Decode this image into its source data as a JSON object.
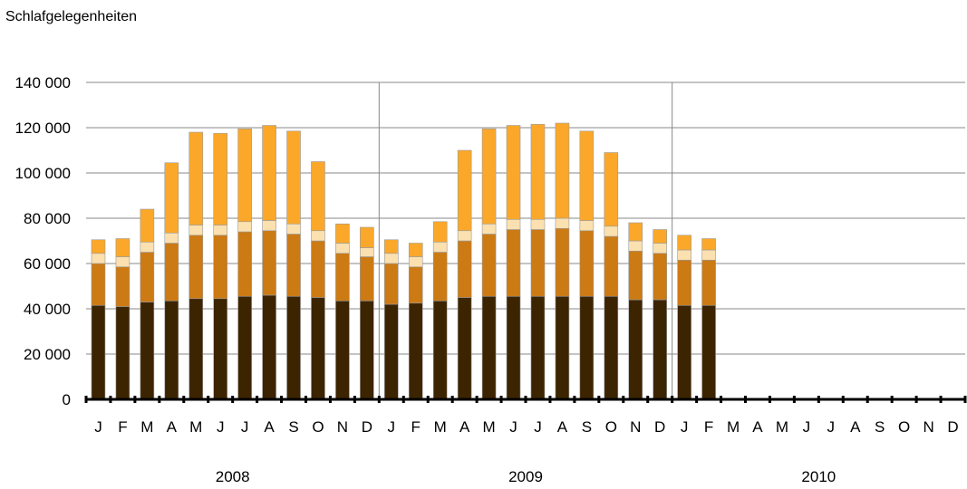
{
  "chart_data": {
    "type": "bar",
    "stacked": true,
    "ylabel": "Schlafgelegenheiten",
    "ylim": [
      0,
      140000
    ],
    "yticks": [
      0,
      20000,
      40000,
      60000,
      80000,
      100000,
      120000,
      140000
    ],
    "ytick_labels": [
      "0",
      "20 000",
      "40 000",
      "60 000",
      "80 000",
      "100 000",
      "120 000",
      "140 000"
    ],
    "grid": true,
    "legend": "none",
    "categories": [
      "J",
      "F",
      "M",
      "A",
      "M",
      "J",
      "J",
      "A",
      "S",
      "O",
      "N",
      "D",
      "J",
      "F",
      "M",
      "A",
      "M",
      "J",
      "J",
      "A",
      "S",
      "O",
      "N",
      "D",
      "J",
      "F",
      "M",
      "A",
      "M",
      "J",
      "J",
      "A",
      "S",
      "O",
      "N",
      "D"
    ],
    "years": [
      {
        "label": "2008",
        "start": 0,
        "end": 11
      },
      {
        "label": "2009",
        "start": 12,
        "end": 23
      },
      {
        "label": "2010",
        "start": 24,
        "end": 35
      }
    ],
    "colors": [
      "#3d2400",
      "#cc7a14",
      "#fbe0b0",
      "#fba82a"
    ],
    "series": [
      {
        "values": [
          41500,
          41000,
          43000,
          43500,
          44500,
          44500,
          45500,
          46000,
          45500,
          45000,
          43500,
          43500,
          42000,
          42500,
          43500,
          45000,
          45500,
          45500,
          45500,
          45500,
          45500,
          45500,
          44000,
          44000,
          41500,
          41500,
          null,
          null,
          null,
          null,
          null,
          null,
          null,
          null,
          null,
          null
        ]
      },
      {
        "values": [
          18500,
          17500,
          22000,
          25500,
          28000,
          28000,
          28500,
          28500,
          27500,
          25000,
          21000,
          19500,
          18000,
          16000,
          21500,
          25000,
          27500,
          29500,
          29500,
          30000,
          29000,
          26500,
          21500,
          20500,
          20000,
          20000,
          null,
          null,
          null,
          null,
          null,
          null,
          null,
          null,
          null,
          null
        ]
      },
      {
        "values": [
          4500,
          4500,
          4500,
          4500,
          4500,
          4500,
          4500,
          4500,
          4500,
          4500,
          4500,
          4000,
          4500,
          4500,
          4500,
          4500,
          4500,
          4500,
          4500,
          4500,
          4500,
          4500,
          4500,
          4500,
          4500,
          4500,
          null,
          null,
          null,
          null,
          null,
          null,
          null,
          null,
          null,
          null
        ]
      },
      {
        "values": [
          6000,
          8000,
          14500,
          31000,
          41000,
          40500,
          41000,
          42000,
          41000,
          30500,
          8500,
          9000,
          6000,
          6000,
          9000,
          35500,
          42000,
          41500,
          42000,
          42000,
          39500,
          32500,
          8000,
          6000,
          6500,
          5000,
          null,
          null,
          null,
          null,
          null,
          null,
          null,
          null,
          null,
          null
        ]
      }
    ]
  }
}
